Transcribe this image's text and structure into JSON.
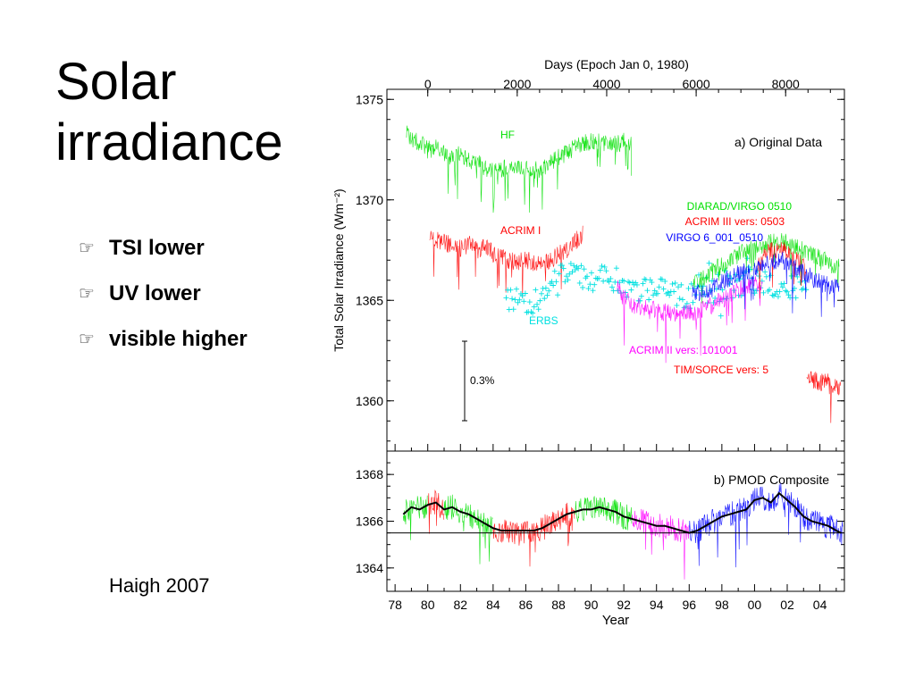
{
  "slide": {
    "title_line1": "Solar",
    "title_line2": "irradiance",
    "bullets": [
      {
        "icon": "pointing-hand-icon",
        "text": "TSI lower"
      },
      {
        "icon": "pointing-hand-icon",
        "text": "UV lower"
      },
      {
        "icon": "pointing-hand-icon",
        "text": "visible higher"
      }
    ],
    "credit": "Haigh 2007"
  },
  "chart_data": [
    {
      "panel": "a",
      "type": "line",
      "title": "a) Original Data",
      "xlabel_top": "Days (Epoch Jan 0, 1980)",
      "xticks_top": [
        0,
        2000,
        4000,
        6000,
        8000
      ],
      "ylabel": "Total Solar Irradiance (Wm⁻²)",
      "ylim": [
        1357.5,
        1375.5
      ],
      "yticks": [
        1375,
        1370,
        1365,
        1360
      ],
      "scale_bar_label": "0.3%",
      "series": [
        {
          "name": "HF",
          "color": "#00e000",
          "x": [
            78.7,
            79.0,
            79.5,
            80.0,
            80.5,
            81.0,
            81.5,
            82.0,
            82.5,
            83.0,
            83.5,
            84.0,
            84.5,
            85.0,
            85.5,
            86.0,
            86.5,
            87.0,
            87.5,
            88.0,
            88.5,
            89.0,
            89.5,
            90.0,
            90.5,
            91.0,
            91.5,
            92.0,
            92.5
          ],
          "values": [
            1373.3,
            1373.0,
            1372.9,
            1372.5,
            1372.6,
            1372.3,
            1372.1,
            1372.4,
            1371.9,
            1372.0,
            1371.6,
            1371.4,
            1371.5,
            1371.7,
            1371.6,
            1371.5,
            1371.5,
            1371.4,
            1371.9,
            1372.1,
            1372.3,
            1372.7,
            1372.8,
            1372.9,
            1373.0,
            1372.7,
            1372.8,
            1372.9,
            1372.7
          ]
        },
        {
          "name": "ACRIM I",
          "color": "#ff0000",
          "x": [
            80.1,
            80.5,
            81.0,
            81.5,
            82.0,
            82.5,
            83.0,
            83.5,
            84.0,
            84.5,
            85.0,
            85.5,
            86.0,
            86.5,
            87.0,
            87.5,
            88.0,
            88.5,
            89.0,
            89.5
          ],
          "values": [
            1368.2,
            1368.0,
            1367.9,
            1367.7,
            1367.6,
            1367.8,
            1367.5,
            1367.7,
            1367.3,
            1367.1,
            1367.0,
            1366.9,
            1367.0,
            1366.9,
            1366.9,
            1367.0,
            1367.3,
            1367.5,
            1367.9,
            1368.3
          ]
        },
        {
          "name": "ERBS",
          "color": "#00e0e0",
          "x": [
            84.8,
            85.2,
            85.7,
            86.2,
            86.7,
            87.2,
            87.7,
            88.2,
            88.7,
            89.2,
            89.7,
            90.2,
            90.7,
            91.2,
            91.7,
            92.2,
            92.7,
            93.2,
            93.7,
            94.2,
            94.7,
            95.2,
            95.7,
            96.2,
            96.7,
            97.2,
            97.7,
            98.2,
            98.7,
            99.2,
            99.7,
            100.2,
            100.7,
            101.2,
            101.7,
            102.2,
            102.7,
            103.2
          ],
          "values": [
            1365.4,
            1365.0,
            1364.8,
            1364.9,
            1365.2,
            1365.5,
            1365.8,
            1366.1,
            1366.3,
            1366.2,
            1366.0,
            1366.1,
            1366.3,
            1366.2,
            1365.9,
            1365.8,
            1365.6,
            1365.6,
            1365.5,
            1365.4,
            1365.3,
            1365.3,
            1365.2,
            1365.3,
            1365.4,
            1365.5,
            1365.6,
            1365.7,
            1365.8,
            1365.9,
            1366.0,
            1365.9,
            1365.8,
            1365.7,
            1365.6,
            1365.6,
            1365.5,
            1365.4
          ]
        },
        {
          "name": "ACRIM II vers: 101001",
          "color": "#ff00ff",
          "x": [
            91.6,
            92.0,
            92.5,
            93.0,
            93.5,
            94.0,
            94.5,
            95.0,
            95.5,
            96.0,
            96.5,
            97.0,
            97.5,
            98.0,
            98.5,
            99.0,
            99.5,
            100.0,
            100.5
          ],
          "values": [
            1365.6,
            1365.1,
            1364.8,
            1364.7,
            1364.6,
            1364.5,
            1364.4,
            1364.4,
            1364.3,
            1364.4,
            1364.5,
            1364.6,
            1364.8,
            1365.0,
            1365.2,
            1365.5,
            1365.7,
            1365.9,
            1365.6
          ]
        },
        {
          "name": "DIARAD/VIRGO 0510",
          "color": "#00e000",
          "x": [
            96.2,
            96.7,
            97.2,
            97.7,
            98.2,
            98.7,
            99.2,
            99.7,
            100.2,
            100.7,
            101.2,
            101.7,
            102.2,
            102.7,
            103.2,
            103.7,
            104.2,
            104.7,
            105.2
          ],
          "values": [
            1365.9,
            1366.0,
            1366.3,
            1366.6,
            1366.8,
            1367.1,
            1367.4,
            1367.6,
            1367.7,
            1367.8,
            1367.9,
            1368.0,
            1367.7,
            1367.6,
            1367.4,
            1367.2,
            1367.0,
            1366.8,
            1366.6
          ]
        },
        {
          "name": "ACRIM III vers: 0503",
          "color": "#ff0000",
          "x": [
            100.2,
            100.7,
            101.2,
            101.7,
            102.2,
            102.7,
            103.2
          ],
          "values": [
            1366.6,
            1367.3,
            1367.5,
            1367.6,
            1367.2,
            1366.9,
            1366.5
          ]
        },
        {
          "name": "VIRGO 6_001_0510",
          "color": "#0000ff",
          "x": [
            96.2,
            96.7,
            97.2,
            97.7,
            98.2,
            98.7,
            99.2,
            99.7,
            100.2,
            100.7,
            101.2,
            101.7,
            102.2,
            102.7,
            103.2,
            103.7,
            104.2,
            104.7,
            105.2
          ],
          "values": [
            1365.3,
            1365.4,
            1365.6,
            1365.8,
            1366.0,
            1366.2,
            1366.4,
            1366.5,
            1366.6,
            1366.8,
            1366.9,
            1367.0,
            1366.7,
            1366.5,
            1366.3,
            1366.0,
            1365.8,
            1365.7,
            1365.6
          ]
        },
        {
          "name": "TIM/SORCE vers: 5",
          "color": "#ff0000",
          "x": [
            103.2,
            103.5,
            103.8,
            104.1,
            104.4,
            104.7,
            105.0,
            105.3
          ],
          "values": [
            1361.3,
            1361.1,
            1361.0,
            1360.9,
            1361.0,
            1360.8,
            1360.7,
            1360.6
          ]
        }
      ]
    },
    {
      "panel": "b",
      "type": "line",
      "title": "b) PMOD Composite",
      "xlabel": "Year",
      "xticks": [
        "78",
        "80",
        "82",
        "84",
        "86",
        "88",
        "90",
        "92",
        "94",
        "96",
        "98",
        "00",
        "02",
        "04"
      ],
      "xlim": [
        77.5,
        105.5
      ],
      "ylim": [
        1363.0,
        1369.0
      ],
      "yticks": [
        1368,
        1366,
        1364
      ],
      "reference_line": 1365.5,
      "segments": [
        {
          "color": "#00e000",
          "range": [
            78.5,
            80.0
          ]
        },
        {
          "color": "#ff0000",
          "range": [
            80.0,
            81.0
          ]
        },
        {
          "color": "#00e000",
          "range": [
            81.0,
            84.0
          ]
        },
        {
          "color": "#ff0000",
          "range": [
            84.0,
            89.0
          ]
        },
        {
          "color": "#00e000",
          "range": [
            89.0,
            92.5
          ]
        },
        {
          "color": "#ff00ff",
          "range": [
            92.5,
            96.0
          ]
        },
        {
          "color": "#0000ff",
          "range": [
            96.0,
            105.4
          ]
        }
      ],
      "series": [
        {
          "name": "",
          "color": "#000000",
          "x": [
            78.5,
            79.0,
            79.5,
            80.0,
            80.5,
            81.0,
            81.5,
            82.0,
            82.5,
            83.0,
            83.5,
            84.0,
            84.5,
            85.0,
            85.5,
            86.0,
            86.5,
            87.0,
            87.5,
            88.0,
            88.5,
            89.0,
            89.5,
            90.0,
            90.5,
            91.0,
            91.5,
            92.0,
            92.5,
            93.0,
            93.5,
            94.0,
            94.5,
            95.0,
            95.5,
            96.0,
            96.5,
            97.0,
            97.5,
            98.0,
            98.5,
            99.0,
            99.5,
            100.0,
            100.5,
            101.0,
            101.5,
            102.0,
            102.5,
            103.0,
            103.5,
            104.0,
            104.5,
            105.0,
            105.3
          ],
          "values": [
            1366.3,
            1366.6,
            1366.5,
            1366.7,
            1366.8,
            1366.5,
            1366.6,
            1366.4,
            1366.3,
            1366.1,
            1365.9,
            1365.7,
            1365.6,
            1365.6,
            1365.6,
            1365.6,
            1365.6,
            1365.7,
            1365.9,
            1366.1,
            1366.3,
            1366.4,
            1366.5,
            1366.5,
            1366.6,
            1366.5,
            1366.4,
            1366.2,
            1366.1,
            1366.0,
            1365.9,
            1365.8,
            1365.8,
            1365.7,
            1365.6,
            1365.5,
            1365.6,
            1365.8,
            1366.0,
            1366.2,
            1366.3,
            1366.4,
            1366.5,
            1366.9,
            1367.0,
            1366.8,
            1367.2,
            1366.9,
            1366.6,
            1366.2,
            1366.0,
            1365.9,
            1365.8,
            1365.6,
            1365.5
          ]
        }
      ]
    }
  ]
}
